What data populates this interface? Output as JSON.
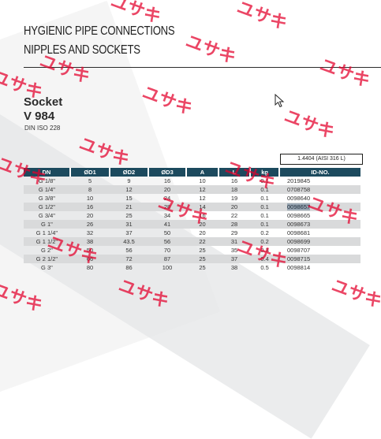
{
  "header": {
    "title_line1": "HYGIENIC PIPE CONNECTIONS",
    "title_line2": "NIPPLES AND SOCKETS"
  },
  "product": {
    "name": "Socket",
    "code": "V 984",
    "standard": "DIN ISO 228"
  },
  "material": "1.4404 (AISI 316 L)",
  "table": {
    "headers": [
      "DN",
      "ØD1",
      "ØD2",
      "ØD3",
      "A",
      "L",
      "kg",
      "ID-NO."
    ],
    "rows": [
      [
        "G 1/8\"",
        "5",
        "9",
        "16",
        "10",
        "16",
        "0.1",
        "2019845"
      ],
      [
        "G 1/4\"",
        "8",
        "12",
        "20",
        "12",
        "18",
        "0.1",
        "0708758"
      ],
      [
        "G 3/8\"",
        "10",
        "15",
        "24",
        "12",
        "19",
        "0.1",
        "0098640"
      ],
      [
        "G 1/2\"",
        "16",
        "21",
        "28",
        "14",
        "20",
        "0.1",
        "0098657"
      ],
      [
        "G 3/4\"",
        "20",
        "25",
        "34",
        "16",
        "22",
        "0.1",
        "0098665"
      ],
      [
        "G 1\"",
        "26",
        "31",
        "41",
        "20",
        "28",
        "0.1",
        "0098673"
      ],
      [
        "G 1 1/4\"",
        "32",
        "37",
        "50",
        "20",
        "29",
        "0.2",
        "0098681"
      ],
      [
        "G 1 1/2\"",
        "38",
        "43.5",
        "56",
        "22",
        "31",
        "0.2",
        "0098699"
      ],
      [
        "G 2\"",
        "50",
        "56",
        "70",
        "25",
        "35",
        "0.3",
        "0098707"
      ],
      [
        "G 2 1/2\"",
        "66",
        "72",
        "87",
        "25",
        "37",
        "0.4",
        "0098715"
      ],
      [
        "G 3\"",
        "80",
        "86",
        "100",
        "25",
        "38",
        "0.5",
        "0098814"
      ]
    ],
    "highlighted_id": "0098657"
  },
  "watermark": {
    "text": "ユサキ",
    "color": "#e4002b"
  },
  "icons": {
    "cursor": "mouse-pointer-icon"
  }
}
